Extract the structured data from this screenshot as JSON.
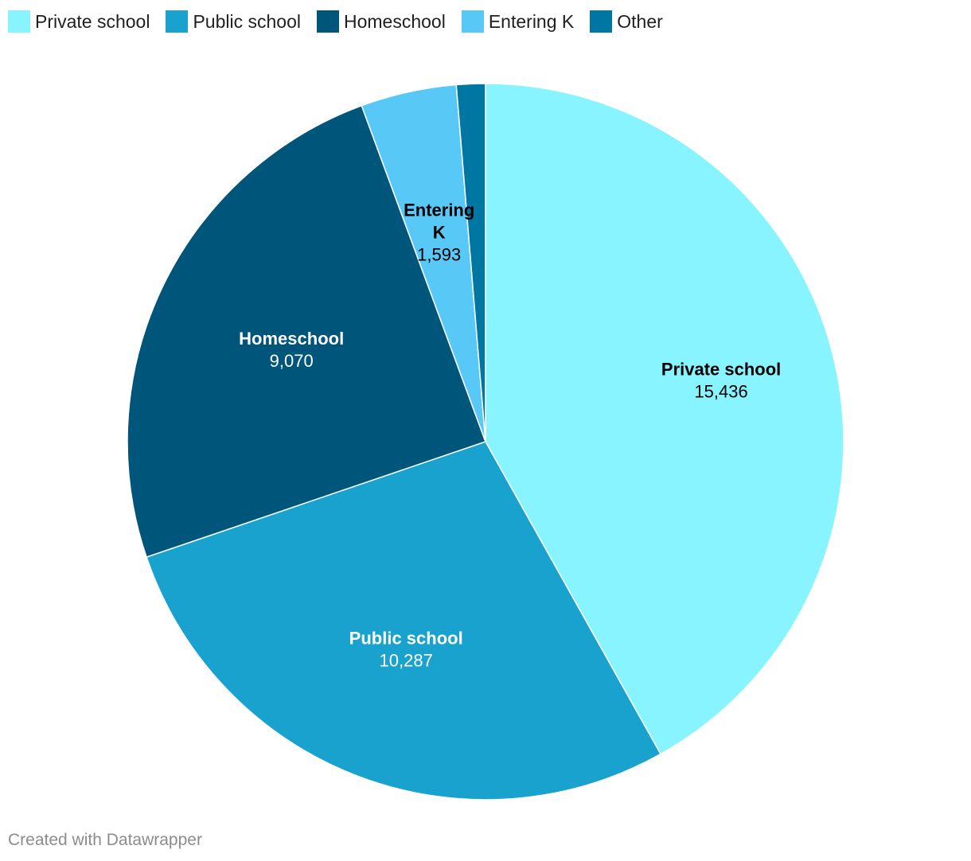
{
  "chart_data": {
    "type": "pie",
    "categories": [
      "Private school",
      "Public school",
      "Homeschool",
      "Entering K",
      "Other"
    ],
    "values": [
      15436,
      10287,
      9070,
      1593,
      480
    ],
    "value_labels": [
      "15,436",
      "10,287",
      "9,070",
      "1,593",
      ""
    ],
    "colors": [
      "#88F4FF",
      "#19A2CD",
      "#00557A",
      "#58C9F7",
      "#0077A3"
    ],
    "label_text_colors": [
      "#000000",
      "#ffffff",
      "#ffffff",
      "#000000",
      "#ffffff"
    ],
    "legend_placement": "top-left",
    "start_angle_deg": 0,
    "direction": "clockwise"
  },
  "footer": {
    "credit": "Created with Datawrapper"
  }
}
